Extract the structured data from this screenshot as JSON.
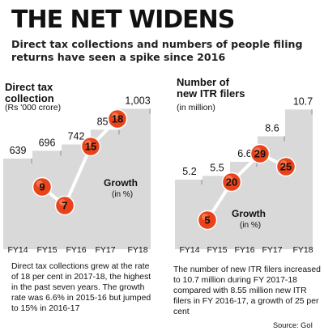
{
  "header": {
    "title": "THE NET WIDENS",
    "subtitle": "Direct tax collections and numbers of people filing returns have seen a spike since 2016"
  },
  "chart_data": [
    {
      "type": "bar",
      "title": "Direct tax collection",
      "unit": "(Rs '000 crore)",
      "categories": [
        "FY14",
        "FY15",
        "FY16",
        "FY17",
        "FY18"
      ],
      "values": [
        639,
        696,
        742,
        850,
        1003
      ],
      "value_labels": [
        "639",
        "696",
        "742",
        "850",
        "1,003"
      ],
      "ylim": [
        0,
        1100
      ],
      "growth": {
        "label": "Growth",
        "unit": "(in %)",
        "categories": [
          "FY15",
          "FY16",
          "FY17",
          "FY18"
        ],
        "values": [
          9,
          7,
          15,
          18
        ]
      },
      "colors": {
        "bar": "#d9d9d9",
        "bar_edge": "#b3b3b3",
        "marker": "#e8431b",
        "line": "#ffffff"
      },
      "grid": false
    },
    {
      "type": "bar",
      "title": "Number of new ITR filers",
      "unit": "(in million)",
      "categories": [
        "FY14",
        "FY15",
        "FY16",
        "FY17",
        "FY18"
      ],
      "values": [
        5.2,
        5.5,
        6.6,
        8.6,
        10.7
      ],
      "value_labels": [
        "5.2",
        "5.5",
        "6.6",
        "8.6",
        "10.7"
      ],
      "ylim": [
        0,
        11.8
      ],
      "growth": {
        "label": "Growth",
        "unit": "(in %)",
        "categories": [
          "FY15",
          "FY16",
          "FY17",
          "FY18"
        ],
        "values": [
          5,
          20,
          29,
          25
        ]
      },
      "colors": {
        "bar": "#d9d9d9",
        "bar_edge": "#b3b3b3",
        "marker": "#e8431b",
        "line": "#ffffff"
      },
      "grid": false
    }
  ],
  "notes": {
    "left": "Direct tax collections grew at the rate of 18 per cent in 2017-18, the highest in the past seven years. The growth rate was 6.6% in 2015-16 but jumped to 15% in 2016-17",
    "right": "The number of new ITR filers increased to 10.7 million during FY 2017-18 compared with 8.55 million new ITR filers in FY 2016-17, a growth of 25 per cent",
    "source": "Source: GoI"
  }
}
